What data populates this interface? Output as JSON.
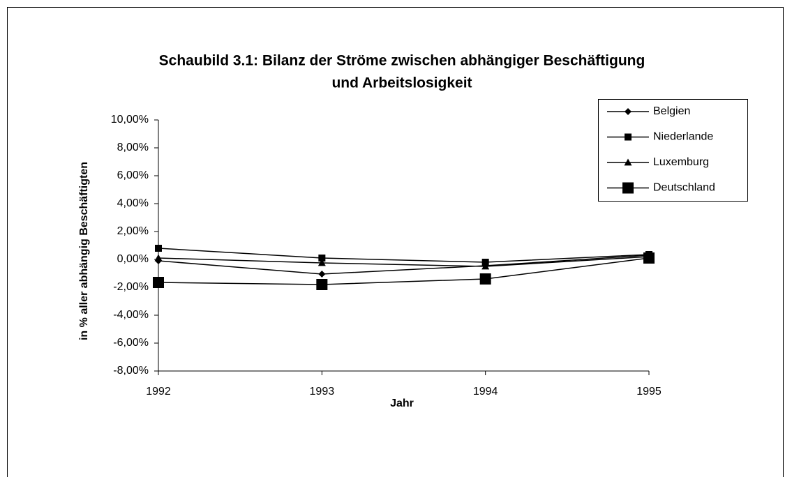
{
  "chart_data": {
    "type": "line",
    "title": [
      "Schaubild 3.1: Bilanz der Ströme zwischen abhängiger Beschäftigung",
      "und Arbeitslosigkeit"
    ],
    "x_label": "Jahr",
    "y_label": "in % aller abhängig Beschäftigten",
    "categories": [
      "1992",
      "1993",
      "1994",
      "1995"
    ],
    "series": [
      {
        "name": "Belgien",
        "color": "#000000",
        "marker": "diamond",
        "marker_size": 10,
        "values": [
          -0.1,
          -1.05,
          -0.45,
          0.3
        ]
      },
      {
        "name": "Niederlande",
        "color": "#000000",
        "marker": "square",
        "marker_size": 10,
        "values": [
          0.8,
          0.1,
          -0.2,
          0.35
        ]
      },
      {
        "name": "Luxemburg",
        "color": "#000000",
        "marker": "triangle",
        "marker_size": 11,
        "values": [
          0.1,
          -0.25,
          -0.5,
          0.2
        ]
      },
      {
        "name": "Deutschland",
        "color": "#000000",
        "marker": "square",
        "marker_size": 16,
        "values": [
          -1.65,
          -1.8,
          -1.4,
          0.1
        ]
      }
    ],
    "ylim": [
      -8,
      10
    ],
    "yticks": [
      {
        "value": -8,
        "label": "-8,00%"
      },
      {
        "value": -6,
        "label": "-6,00%"
      },
      {
        "value": -4,
        "label": "-4,00%"
      },
      {
        "value": -2,
        "label": "-2,00%"
      },
      {
        "value": 0,
        "label": "0,00%"
      },
      {
        "value": 2,
        "label": "2,00%"
      },
      {
        "value": 4,
        "label": "4,00%"
      },
      {
        "value": 6,
        "label": "6,00%"
      },
      {
        "value": 8,
        "label": "8,00%"
      },
      {
        "value": 10,
        "label": "10,00%"
      }
    ],
    "grid": false,
    "legend": "upper right"
  }
}
